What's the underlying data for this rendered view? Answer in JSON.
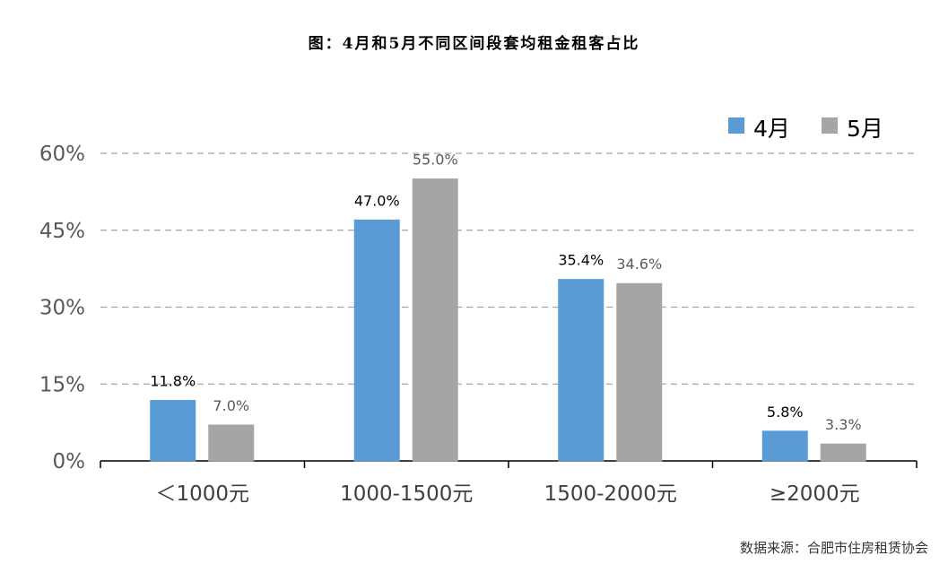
{
  "chart_data": {
    "type": "bar",
    "title": "图：4月和5月不同区间段套均租金租客占比",
    "categories": [
      "＜1000元",
      "1000-1500元",
      "1500-2000元",
      "≥2000元"
    ],
    "series": [
      {
        "name": "4月",
        "values": [
          11.8,
          47.0,
          35.4,
          5.8
        ],
        "labels": [
          "11.8%",
          "47.0%",
          "35.4%",
          "5.8%"
        ],
        "color": "#5b9bd5",
        "label_color": "#000000"
      },
      {
        "name": "5月",
        "values": [
          7.0,
          55.0,
          34.6,
          3.3
        ],
        "labels": [
          "7.0%",
          "55.0%",
          "34.6%",
          "3.3%"
        ],
        "color": "#a5a5a5",
        "label_color": "#595959"
      }
    ],
    "yticks": [
      "0%",
      "15%",
      "30%",
      "45%",
      "60%"
    ],
    "ylim": [
      0,
      60
    ],
    "grid": true,
    "legend": "top-right",
    "xlabel": "",
    "ylabel": ""
  },
  "source": "数据来源：合肥市住房租赁协会"
}
